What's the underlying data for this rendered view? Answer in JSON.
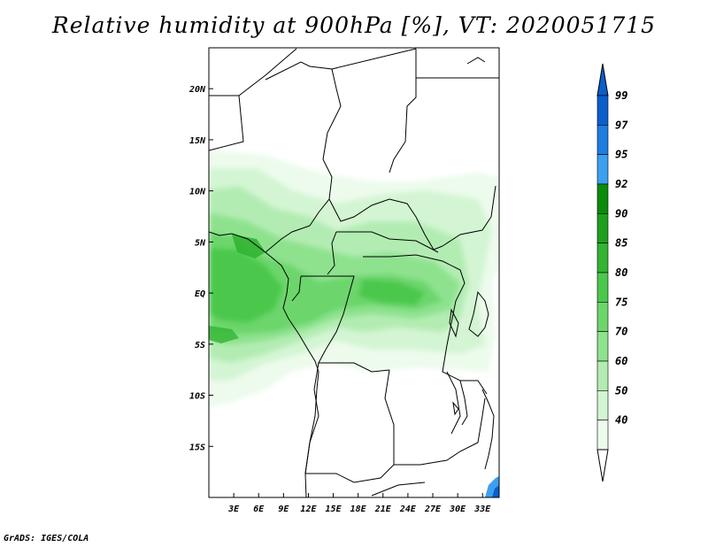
{
  "title": "Relative humidity at 900hPa [%], VT: 2020051715",
  "credit": "GrADS: IGES/COLA",
  "map": {
    "lon_range": [
      0,
      35
    ],
    "lat_range": [
      -20,
      24
    ],
    "lon_ticks": [
      "3E",
      "6E",
      "9E",
      "12E",
      "15E",
      "18E",
      "21E",
      "24E",
      "27E",
      "30E",
      "33E"
    ],
    "lat_ticks": [
      "20N",
      "15N",
      "10N",
      "5N",
      "EQ",
      "5S",
      "10S",
      "15S"
    ],
    "colorbar": {
      "levels": [
        "99",
        "97",
        "95",
        "92",
        "90",
        "85",
        "80",
        "75",
        "70",
        "60",
        "50",
        "40"
      ],
      "colors": [
        "#0a5fcc",
        "#1e7de0",
        "#3ca0f0",
        "#0a8c0a",
        "#1ea01e",
        "#32b432",
        "#4bc84b",
        "#6cd66c",
        "#8ee28e",
        "#b2ecb2",
        "#d3f5d3",
        "#ecfbec"
      ],
      "lower_color": "#ffffff"
    }
  }
}
